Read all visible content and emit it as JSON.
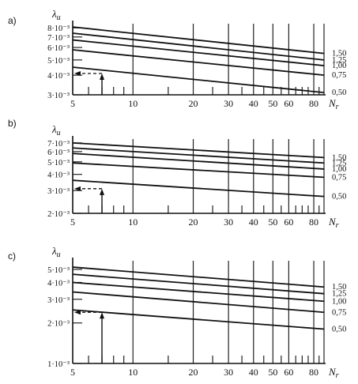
{
  "chart_data": [
    {
      "type": "line",
      "panel_label": "a)",
      "ylabel": "λ",
      "ylabel_sub": "u",
      "xlabel": "N",
      "xlabel_sub": "r",
      "x_scale": "log",
      "y_scale": "log",
      "xlim": [
        5,
        90
      ],
      "ylim": [
        0.003,
        0.0085
      ],
      "x_ticks": [
        5,
        10,
        20,
        30,
        40,
        50,
        60,
        80
      ],
      "y_ticks": [
        0.003,
        0.004,
        0.005,
        0.006,
        0.007,
        0.008
      ],
      "y_tick_labels": [
        "3·10⁻³",
        "4·10⁻³",
        "5·10⁻³",
        "6·10⁻³",
        "7·10⁻³",
        "8·10⁻³"
      ],
      "series": [
        {
          "name": "1,50",
          "x": [
            5,
            90
          ],
          "y": [
            0.0081,
            0.0055
          ]
        },
        {
          "name": "1,25",
          "x": [
            5,
            90
          ],
          "y": [
            0.0074,
            0.005
          ]
        },
        {
          "name": "1,00",
          "x": [
            5,
            90
          ],
          "y": [
            0.0067,
            0.0046
          ]
        },
        {
          "name": "0,75",
          "x": [
            5,
            90
          ],
          "y": [
            0.0058,
            0.004
          ]
        },
        {
          "name": "0,50",
          "x": [
            5,
            90
          ],
          "y": [
            0.0045,
            0.0031
          ]
        }
      ],
      "annotation": {
        "x": 7,
        "y": 0.0041
      }
    },
    {
      "type": "line",
      "panel_label": "b)",
      "ylabel": "λ",
      "ylabel_sub": "u",
      "xlabel": "N",
      "xlabel_sub": "r",
      "x_scale": "log",
      "y_scale": "log",
      "xlim": [
        5,
        90
      ],
      "ylim": [
        0.002,
        0.0075
      ],
      "x_ticks": [
        5,
        10,
        20,
        30,
        40,
        50,
        60,
        80
      ],
      "y_ticks": [
        0.002,
        0.003,
        0.004,
        0.005,
        0.006,
        0.007
      ],
      "y_tick_labels": [
        "2·10⁻³",
        "3·10⁻³",
        "4·10⁻³",
        "5·10⁻³",
        "6·10⁻³",
        "7·10⁻³"
      ],
      "series": [
        {
          "name": "1,50",
          "x": [
            5,
            90
          ],
          "y": [
            0.007,
            0.0054
          ]
        },
        {
          "name": "1,25",
          "x": [
            5,
            90
          ],
          "y": [
            0.0064,
            0.0049
          ]
        },
        {
          "name": "1,00",
          "x": [
            5,
            90
          ],
          "y": [
            0.0058,
            0.0044
          ]
        },
        {
          "name": "0,75",
          "x": [
            5,
            90
          ],
          "y": [
            0.0049,
            0.0038
          ]
        },
        {
          "name": "0,50",
          "x": [
            5,
            90
          ],
          "y": [
            0.0036,
            0.0027
          ]
        }
      ],
      "annotation": {
        "x": 7,
        "y": 0.0031
      }
    },
    {
      "type": "line",
      "panel_label": "c)",
      "ylabel": "λ",
      "ylabel_sub": "u",
      "xlabel": "N",
      "xlabel_sub": "r",
      "x_scale": "log",
      "y_scale": "log",
      "xlim": [
        5,
        90
      ],
      "ylim": [
        0.001,
        0.0058
      ],
      "x_ticks": [
        5,
        10,
        20,
        30,
        40,
        50,
        60,
        80
      ],
      "y_ticks": [
        0.001,
        0.002,
        0.003,
        0.004,
        0.005
      ],
      "y_tick_labels": [
        "1·10⁻³",
        "2·10⁻³",
        "3·10⁻³",
        "4·10⁻³",
        "5·10⁻³"
      ],
      "series": [
        {
          "name": "1,50",
          "x": [
            5,
            90
          ],
          "y": [
            0.0052,
            0.0037
          ]
        },
        {
          "name": "1,25",
          "x": [
            5,
            90
          ],
          "y": [
            0.0046,
            0.0033
          ]
        },
        {
          "name": "1,00",
          "x": [
            5,
            90
          ],
          "y": [
            0.004,
            0.0029
          ]
        },
        {
          "name": "0,75",
          "x": [
            5,
            90
          ],
          "y": [
            0.0034,
            0.0024
          ]
        },
        {
          "name": "0,50",
          "x": [
            5,
            90
          ],
          "y": [
            0.0025,
            0.0018
          ]
        }
      ],
      "annotation": {
        "x": 7,
        "y": 0.0024
      }
    }
  ]
}
